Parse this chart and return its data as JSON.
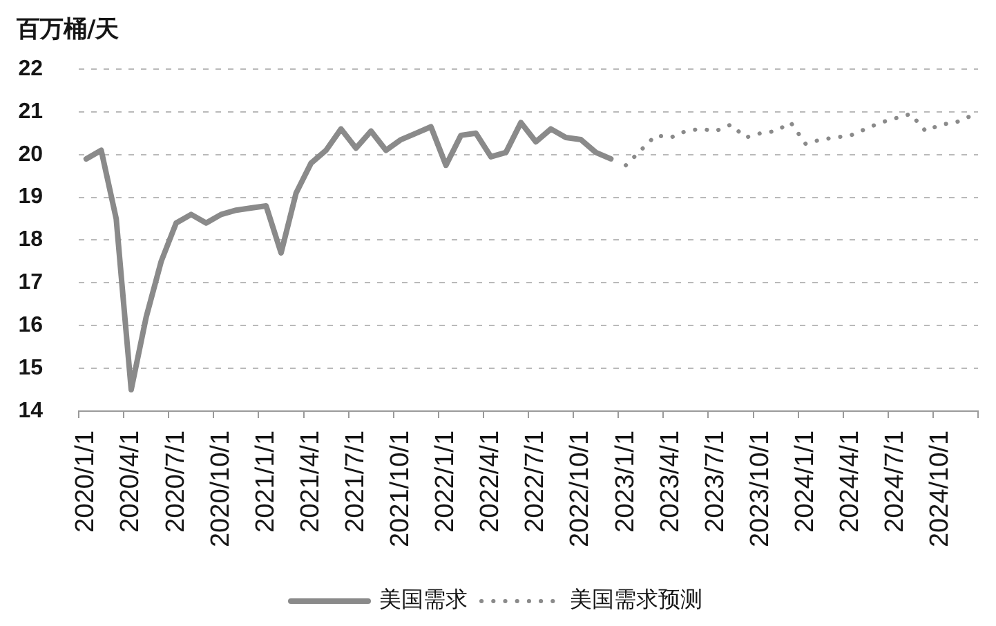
{
  "chart_data": {
    "type": "line",
    "ylabel": "百万桶/天",
    "categories": [
      "2020/1/1",
      null,
      null,
      "2020/4/1",
      null,
      null,
      "2020/7/1",
      null,
      null,
      "2020/10/1",
      null,
      null,
      "2021/1/1",
      null,
      null,
      "2021/4/1",
      null,
      null,
      "2021/7/1",
      null,
      null,
      "2021/10/1",
      null,
      null,
      "2022/1/1",
      null,
      null,
      "2022/4/1",
      null,
      null,
      "2022/7/1",
      null,
      null,
      "2022/10/1",
      null,
      null,
      "2023/1/1",
      null,
      null,
      "2023/4/1",
      null,
      null,
      "2023/7/1",
      null,
      null,
      "2023/10/1",
      null,
      null,
      "2024/1/1",
      null,
      null,
      "2024/4/1",
      null,
      null,
      "2024/7/1",
      null,
      null,
      "2024/10/1",
      null,
      null
    ],
    "series": [
      {
        "name": "美国需求",
        "color": "#8a8a8a",
        "line_style": "solid",
        "values": [
          19.9,
          20.1,
          18.5,
          14.5,
          16.2,
          17.5,
          18.4,
          18.6,
          18.4,
          18.6,
          18.7,
          18.75,
          18.8,
          17.7,
          19.1,
          19.8,
          20.1,
          20.6,
          20.15,
          20.55,
          20.1,
          20.35,
          20.5,
          20.65,
          19.75,
          20.45,
          20.5,
          19.95,
          20.05,
          20.75,
          20.3,
          20.6,
          20.4,
          20.35,
          20.05,
          19.9,
          null,
          null,
          null,
          null,
          null,
          null,
          null,
          null,
          null,
          null,
          null,
          null,
          null,
          null,
          null,
          null,
          null,
          null,
          null,
          null,
          null,
          null,
          null,
          null
        ]
      },
      {
        "name": "美国需求预测",
        "color": "#8a8a8a",
        "line_style": "dotted",
        "values": [
          null,
          null,
          null,
          null,
          null,
          null,
          null,
          null,
          null,
          null,
          null,
          null,
          null,
          null,
          null,
          null,
          null,
          null,
          null,
          null,
          null,
          null,
          null,
          null,
          null,
          null,
          null,
          null,
          null,
          null,
          null,
          null,
          null,
          null,
          null,
          null,
          19.75,
          20.1,
          20.45,
          20.4,
          20.55,
          20.6,
          20.55,
          20.7,
          20.4,
          20.5,
          20.55,
          20.75,
          20.25,
          20.35,
          20.4,
          20.45,
          20.6,
          20.75,
          20.85,
          20.95,
          20.55,
          20.7,
          20.75,
          20.9
        ]
      }
    ],
    "ylim": [
      14,
      22
    ],
    "yticks": [
      14,
      15,
      16,
      17,
      18,
      19,
      20,
      21,
      22
    ],
    "grid": "y",
    "legend": "bottom",
    "marker": "none"
  }
}
